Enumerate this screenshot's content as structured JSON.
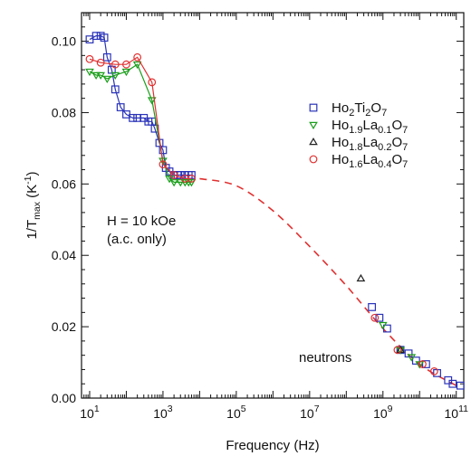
{
  "chart_data": {
    "type": "scatter",
    "xlabel": "Frequency (Hz)",
    "ylabel_main": "1/T",
    "ylabel_sub": "max",
    "ylabel_units_pre": " (K",
    "ylabel_units_sup": "-1",
    "ylabel_units_post": ")",
    "xscale": "log",
    "xlim": [
      6,
      160000000000.0
    ],
    "ylim": [
      0.0,
      0.108
    ],
    "x_tick_exponents": [
      1,
      3,
      5,
      7,
      9,
      11
    ],
    "x_tick_base": "10",
    "y_ticks": [
      0.0,
      0.02,
      0.04,
      0.06,
      0.08,
      0.1
    ],
    "y_tick_labels": [
      "0.00",
      "0.02",
      "0.04",
      "0.06",
      "0.08",
      "0.10"
    ],
    "legend_position": "right",
    "annotations": {
      "field_line1": "H = 10 kOe",
      "field_line2": "(a.c. only)",
      "neutrons": "neutrons"
    },
    "series": [
      {
        "name": "Ho2Ti2O7",
        "legend_parts": [
          {
            "t": "Ho",
            "s": false
          },
          {
            "t": "2",
            "s": true
          },
          {
            "t": "Ti",
            "s": false
          },
          {
            "t": "2",
            "s": true
          },
          {
            "t": "O",
            "s": false
          },
          {
            "t": "7",
            "s": true
          }
        ],
        "marker": "square",
        "color": "#2a33b8",
        "points": [
          [
            10,
            0.1005
          ],
          [
            15,
            0.1015
          ],
          [
            20,
            0.1015
          ],
          [
            25,
            0.101
          ],
          [
            30,
            0.0955
          ],
          [
            40,
            0.092
          ],
          [
            50,
            0.0865
          ],
          [
            70,
            0.0815
          ],
          [
            100,
            0.0795
          ],
          [
            150,
            0.0785
          ],
          [
            200,
            0.0785
          ],
          [
            300,
            0.0785
          ],
          [
            400,
            0.0775
          ],
          [
            500,
            0.0775
          ],
          [
            600,
            0.0755
          ],
          [
            800,
            0.0715
          ],
          [
            1000,
            0.0695
          ],
          [
            1200,
            0.0645
          ],
          [
            1500,
            0.0635
          ],
          [
            2000,
            0.0625
          ],
          [
            2500,
            0.0625
          ],
          [
            3000,
            0.0625
          ],
          [
            4000,
            0.0625
          ],
          [
            5000,
            0.0625
          ],
          [
            6000,
            0.0625
          ],
          [
            500000000.0,
            0.0255
          ],
          [
            800000000.0,
            0.0225
          ],
          [
            1300000000.0,
            0.0195
          ],
          [
            3000000000.0,
            0.0135
          ],
          [
            5000000000.0,
            0.0125
          ],
          [
            8000000000.0,
            0.0105
          ],
          [
            15000000000.0,
            0.0095
          ],
          [
            30000000000.0,
            0.007
          ],
          [
            60000000000.0,
            0.005
          ],
          [
            80000000000.0,
            0.004
          ],
          [
            130000000000.0,
            0.0035
          ]
        ]
      },
      {
        "name": "Ho1.9La0.1O7",
        "legend_parts": [
          {
            "t": "Ho",
            "s": false
          },
          {
            "t": "1.9",
            "s": true
          },
          {
            "t": "La",
            "s": false
          },
          {
            "t": "0.1",
            "s": true
          },
          {
            "t": "O",
            "s": false
          },
          {
            "t": "7",
            "s": true
          }
        ],
        "marker": "triangle-down",
        "color": "#1a9e1a",
        "points": [
          [
            10,
            0.0915
          ],
          [
            15,
            0.0905
          ],
          [
            20,
            0.0905
          ],
          [
            30,
            0.0895
          ],
          [
            50,
            0.0905
          ],
          [
            100,
            0.0915
          ],
          [
            200,
            0.0935
          ],
          [
            500,
            0.0835
          ],
          [
            1000,
            0.0665
          ],
          [
            1500,
            0.0615
          ],
          [
            2000,
            0.0605
          ],
          [
            3000,
            0.0605
          ],
          [
            4000,
            0.0605
          ],
          [
            5000,
            0.0605
          ],
          [
            6000,
            0.0605
          ],
          [
            1000000000.0,
            0.0205
          ],
          [
            3000000000.0,
            0.0135
          ],
          [
            6000000000.0,
            0.0115
          ],
          [
            10000000000.0,
            0.0095
          ]
        ]
      },
      {
        "name": "Ho1.8La0.2O7",
        "legend_parts": [
          {
            "t": "Ho",
            "s": false
          },
          {
            "t": "1.8",
            "s": true
          },
          {
            "t": "La",
            "s": false
          },
          {
            "t": "0.2",
            "s": true
          },
          {
            "t": "O",
            "s": false
          },
          {
            "t": "7",
            "s": true
          }
        ],
        "marker": "triangle-up",
        "color": "#222222",
        "points": [
          [
            250000000.0,
            0.0335
          ],
          [
            3000000000.0,
            0.0135
          ]
        ]
      },
      {
        "name": "Ho1.6La0.4O7",
        "legend_parts": [
          {
            "t": "Ho",
            "s": false
          },
          {
            "t": "1.6",
            "s": true
          },
          {
            "t": "La",
            "s": false
          },
          {
            "t": "0.4",
            "s": true
          },
          {
            "t": "O",
            "s": false
          },
          {
            "t": "7",
            "s": true
          }
        ],
        "marker": "circle",
        "color": "#e03030",
        "points": [
          [
            10,
            0.095
          ],
          [
            20,
            0.094
          ],
          [
            50,
            0.0935
          ],
          [
            100,
            0.0935
          ],
          [
            200,
            0.0955
          ],
          [
            500,
            0.0885
          ],
          [
            1000,
            0.0655
          ],
          [
            2000,
            0.0625
          ],
          [
            4000,
            0.0615
          ],
          [
            6000,
            0.0615
          ],
          [
            600000000.0,
            0.0225
          ],
          [
            2500000000.0,
            0.0135
          ],
          [
            12000000000.0,
            0.0095
          ],
          [
            25000000000.0,
            0.0075
          ]
        ]
      }
    ],
    "dashed_fit": {
      "color": "#e03030",
      "points": [
        [
          10000.0,
          0.0615
        ],
        [
          100000.0,
          0.0595
        ],
        [
          1000000.0,
          0.0525
        ],
        [
          10000000.0,
          0.0425
        ],
        [
          100000000.0,
          0.0315
        ],
        [
          1000000000.0,
          0.0195
        ],
        [
          10000000000.0,
          0.0095
        ],
        [
          100000000000.0,
          0.0035
        ]
      ]
    }
  }
}
